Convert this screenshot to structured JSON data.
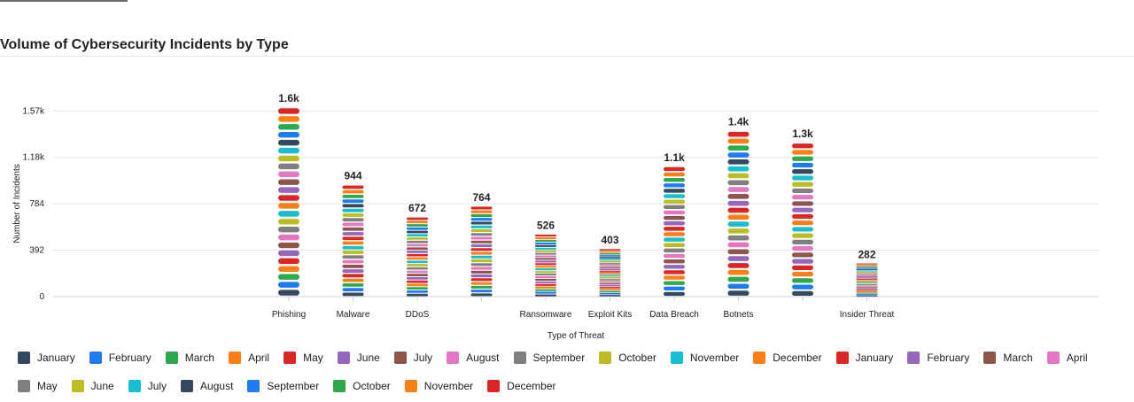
{
  "title": "Volume of Cybersecurity Incidents by Type",
  "chart_data": {
    "type": "bar",
    "stacked": true,
    "title": "Volume of Cybersecurity Incidents by Type",
    "xlabel": "Type of Threat",
    "ylabel": "Number of Incidents",
    "ylim": [
      0,
      1570
    ],
    "y_ticks": [
      "0",
      "392",
      "784",
      "1.18k",
      "1.57k"
    ],
    "y_tick_values": [
      0,
      392,
      784,
      1176,
      1568
    ],
    "categories": [
      "Phishing",
      "Malware",
      "DDoS",
      "",
      "Ransomware",
      "Exploit Kits",
      "Data Breach",
      "Botnets",
      "",
      "Insider Threat"
    ],
    "totals": [
      1600,
      944,
      672,
      764,
      526,
      403,
      1100,
      1400,
      1300,
      282
    ],
    "total_labels": [
      "1.6k",
      "944",
      "672",
      "764",
      "526",
      "403",
      "1.1k",
      "1.4k",
      "1.3k",
      "282"
    ],
    "grid": true,
    "legend_position": "bottom",
    "series": [
      {
        "name": "January",
        "color": "#34495e"
      },
      {
        "name": "February",
        "color": "#1e7bf0"
      },
      {
        "name": "March",
        "color": "#2ea84f"
      },
      {
        "name": "April",
        "color": "#fd7e14"
      },
      {
        "name": "May",
        "color": "#dc2626"
      },
      {
        "name": "June",
        "color": "#9467bd"
      },
      {
        "name": "July",
        "color": "#8c564b"
      },
      {
        "name": "August",
        "color": "#e377c2"
      },
      {
        "name": "September",
        "color": "#7f7f7f"
      },
      {
        "name": "October",
        "color": "#bcbd22"
      },
      {
        "name": "November",
        "color": "#17becf"
      },
      {
        "name": "December",
        "color": "#fd7e14"
      },
      {
        "name": "January",
        "color": "#dc2626"
      },
      {
        "name": "February",
        "color": "#9467bd"
      },
      {
        "name": "March",
        "color": "#8c564b"
      },
      {
        "name": "April",
        "color": "#e377c2"
      },
      {
        "name": "May",
        "color": "#7f7f7f"
      },
      {
        "name": "June",
        "color": "#bcbd22"
      },
      {
        "name": "July",
        "color": "#17becf"
      },
      {
        "name": "August",
        "color": "#34495e"
      },
      {
        "name": "September",
        "color": "#1e7bf0"
      },
      {
        "name": "October",
        "color": "#2ea84f"
      },
      {
        "name": "November",
        "color": "#fd7e14"
      },
      {
        "name": "December",
        "color": "#dc2626"
      }
    ]
  }
}
